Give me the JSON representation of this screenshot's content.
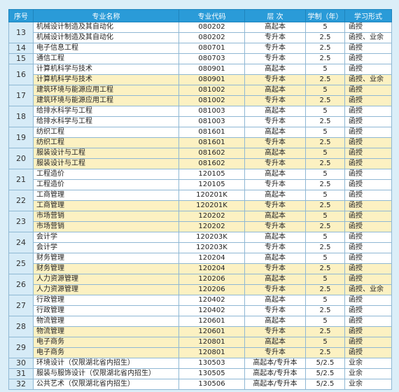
{
  "headers": {
    "seq": "序号",
    "name": "专业名称",
    "code": "专业代码",
    "level": "层 次",
    "years": "学制（年）",
    "form": "学习形式"
  },
  "groups": [
    {
      "seq": "13",
      "rows": [
        {
          "name": "机械设计制造及其自动化",
          "code": "080202",
          "level": "高起本",
          "years": "5",
          "form": "函授",
          "hl": false
        },
        {
          "name": "机械设计制造及其自动化",
          "code": "080202",
          "level": "专升本",
          "years": "2.5",
          "form": "函授、业余",
          "hl": false
        }
      ]
    },
    {
      "seq": "14",
      "rows": [
        {
          "name": "电子信息工程",
          "code": "080701",
          "level": "专升本",
          "years": "2.5",
          "form": "函授",
          "hl": false
        }
      ]
    },
    {
      "seq": "15",
      "rows": [
        {
          "name": "通信工程",
          "code": "080703",
          "level": "专升本",
          "years": "2.5",
          "form": "函授",
          "hl": false
        }
      ]
    },
    {
      "seq": "16",
      "rows": [
        {
          "name": "计算机科学与技术",
          "code": "080901",
          "level": "高起本",
          "years": "5",
          "form": "函授",
          "hl": false
        },
        {
          "name": "计算机科学与技术",
          "code": "080901",
          "level": "专升本",
          "years": "2.5",
          "form": "函授、业余",
          "hl": true
        }
      ]
    },
    {
      "seq": "17",
      "rows": [
        {
          "name": "建筑环境与能源应用工程",
          "code": "081002",
          "level": "高起本",
          "years": "5",
          "form": "函授",
          "hl": true
        },
        {
          "name": "建筑环境与能源应用工程",
          "code": "081002",
          "level": "专升本",
          "years": "2.5",
          "form": "函授",
          "hl": true
        }
      ]
    },
    {
      "seq": "18",
      "rows": [
        {
          "name": "给排水科学与工程",
          "code": "081003",
          "level": "高起本",
          "years": "5",
          "form": "函授",
          "hl": false
        },
        {
          "name": "给排水科学与工程",
          "code": "081003",
          "level": "专升本",
          "years": "2.5",
          "form": "函授",
          "hl": false
        }
      ]
    },
    {
      "seq": "19",
      "rows": [
        {
          "name": "纺织工程",
          "code": "081601",
          "level": "高起本",
          "years": "5",
          "form": "函授",
          "hl": false
        },
        {
          "name": "纺织工程",
          "code": "081601",
          "level": "专升本",
          "years": "2.5",
          "form": "函授",
          "hl": true
        }
      ]
    },
    {
      "seq": "20",
      "rows": [
        {
          "name": "服装设计与工程",
          "code": "081602",
          "level": "高起本",
          "years": "5",
          "form": "函授",
          "hl": true
        },
        {
          "name": "服装设计与工程",
          "code": "081602",
          "level": "专升本",
          "years": "2.5",
          "form": "函授",
          "hl": true
        }
      ]
    },
    {
      "seq": "21",
      "rows": [
        {
          "name": "工程造价",
          "code": "120105",
          "level": "高起本",
          "years": "5",
          "form": "函授",
          "hl": false
        },
        {
          "name": "工程造价",
          "code": "120105",
          "level": "专升本",
          "years": "2.5",
          "form": "函授",
          "hl": false
        }
      ]
    },
    {
      "seq": "22",
      "rows": [
        {
          "name": "工商管理",
          "code": "120201K",
          "level": "高起本",
          "years": "5",
          "form": "函授",
          "hl": false
        },
        {
          "name": "工商管理",
          "code": "120201K",
          "level": "专升本",
          "years": "2.5",
          "form": "函授",
          "hl": true
        }
      ]
    },
    {
      "seq": "23",
      "rows": [
        {
          "name": "市场营销",
          "code": "120202",
          "level": "高起本",
          "years": "5",
          "form": "函授",
          "hl": true
        },
        {
          "name": "市场营销",
          "code": "120202",
          "level": "专升本",
          "years": "2.5",
          "form": "函授",
          "hl": true
        }
      ]
    },
    {
      "seq": "24",
      "rows": [
        {
          "name": "会计学",
          "code": "120203K",
          "level": "高起本",
          "years": "5",
          "form": "函授",
          "hl": false
        },
        {
          "name": "会计学",
          "code": "120203K",
          "level": "专升本",
          "years": "2.5",
          "form": "函授",
          "hl": false
        }
      ]
    },
    {
      "seq": "25",
      "rows": [
        {
          "name": "财务管理",
          "code": "120204",
          "level": "高起本",
          "years": "5",
          "form": "函授",
          "hl": false
        },
        {
          "name": "财务管理",
          "code": "120204",
          "level": "专升本",
          "years": "2.5",
          "form": "函授",
          "hl": true
        }
      ]
    },
    {
      "seq": "26",
      "rows": [
        {
          "name": "人力资源管理",
          "code": "120206",
          "level": "高起本",
          "years": "5",
          "form": "函授",
          "hl": true
        },
        {
          "name": "人力资源管理",
          "code": "120206",
          "level": "专升本",
          "years": "2.5",
          "form": "函授、业余",
          "hl": true
        }
      ]
    },
    {
      "seq": "27",
      "rows": [
        {
          "name": "行政管理",
          "code": "120402",
          "level": "高起本",
          "years": "5",
          "form": "函授",
          "hl": false
        },
        {
          "name": "行政管理",
          "code": "120402",
          "level": "专升本",
          "years": "2.5",
          "form": "函授",
          "hl": false
        }
      ]
    },
    {
      "seq": "28",
      "rows": [
        {
          "name": "物流管理",
          "code": "120601",
          "level": "高起本",
          "years": "5",
          "form": "函授",
          "hl": false
        },
        {
          "name": "物流管理",
          "code": "120601",
          "level": "专升本",
          "years": "2.5",
          "form": "函授",
          "hl": true
        }
      ]
    },
    {
      "seq": "29",
      "rows": [
        {
          "name": "电子商务",
          "code": "120801",
          "level": "高起本",
          "years": "5",
          "form": "函授",
          "hl": true
        },
        {
          "name": "电子商务",
          "code": "120801",
          "level": "专升本",
          "years": "2.5",
          "form": "函授",
          "hl": true
        }
      ]
    },
    {
      "seq": "30",
      "rows": [
        {
          "name": "环境设计（仅限湖北省内招生）",
          "code": "130503",
          "level": "高起本/专升本",
          "years": "5/2.5",
          "form": "业余",
          "hl": false
        }
      ]
    },
    {
      "seq": "31",
      "rows": [
        {
          "name": "服装与服饰设计（仅限湖北省内招生）",
          "code": "130505",
          "level": "高起本/专升本",
          "years": "5/2.5",
          "form": "业余",
          "hl": false
        }
      ]
    },
    {
      "seq": "32",
      "rows": [
        {
          "name": "公共艺术（仅限湖北省内招生）",
          "code": "130506",
          "level": "高起本/专升本",
          "years": "5/2.5",
          "form": "业余",
          "hl": false
        }
      ]
    }
  ]
}
